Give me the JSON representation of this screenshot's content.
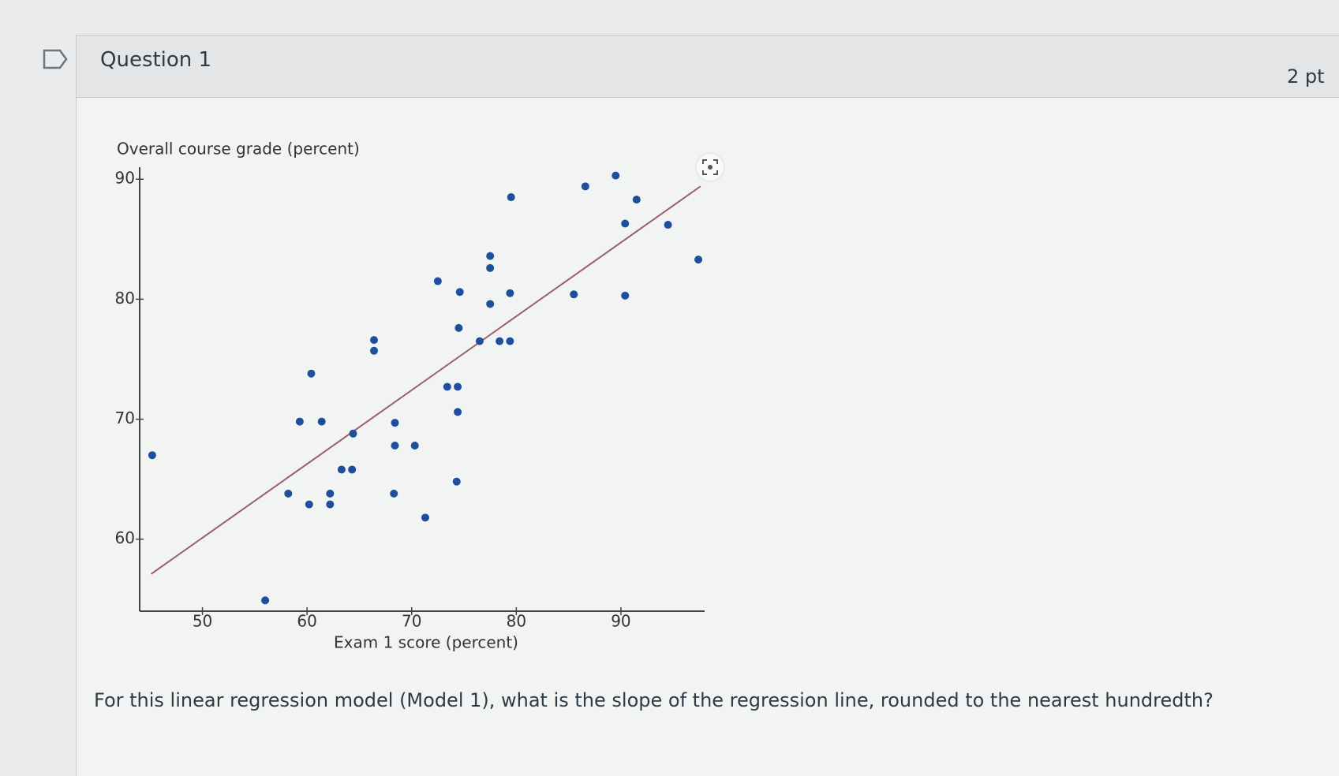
{
  "question": {
    "title": "Question 1",
    "points": "2 pt",
    "text": "For this linear regression model (Model 1), what is the slope of the regression line, rounded to the nearest hundredth?"
  },
  "chart_data": {
    "type": "scatter",
    "y_label": "Overall course grade (percent)",
    "x_label": "Exam 1 score (percent)",
    "x": [
      45.2,
      56.0,
      58.2,
      59.3,
      60.2,
      60.4,
      61.4,
      62.2,
      62.2,
      63.3,
      64.3,
      64.4,
      66.4,
      66.4,
      68.3,
      68.4,
      68.4,
      70.3,
      71.3,
      72.5,
      73.4,
      74.4,
      74.4,
      74.3,
      74.5,
      74.6,
      76.5,
      77.5,
      77.5,
      77.5,
      78.4,
      79.4,
      79.4,
      79.5,
      85.5,
      86.6,
      89.5,
      90.4,
      90.4,
      91.5,
      94.5,
      97.4
    ],
    "values": [
      67.0,
      54.9,
      63.8,
      69.8,
      62.9,
      73.8,
      69.8,
      63.8,
      62.9,
      65.8,
      65.8,
      68.8,
      76.6,
      75.7,
      63.8,
      69.7,
      67.8,
      67.8,
      61.8,
      81.5,
      72.7,
      72.7,
      70.6,
      64.8,
      77.6,
      80.6,
      76.5,
      83.6,
      82.6,
      79.6,
      76.5,
      76.5,
      80.5,
      88.5,
      80.4,
      89.4,
      90.3,
      80.3,
      86.3,
      88.3,
      86.2,
      83.3
    ],
    "color": "#1f4f9c",
    "trend_line": {
      "x": [
        45.1,
        97.6
      ],
      "values": [
        57.1,
        89.4
      ],
      "color": "#9c5f6a"
    },
    "xlim": [
      44,
      98
    ],
    "ylim": [
      54,
      91
    ],
    "xticks": [
      50,
      60,
      70,
      80,
      90
    ],
    "yticks": [
      60,
      70,
      80,
      90
    ]
  }
}
